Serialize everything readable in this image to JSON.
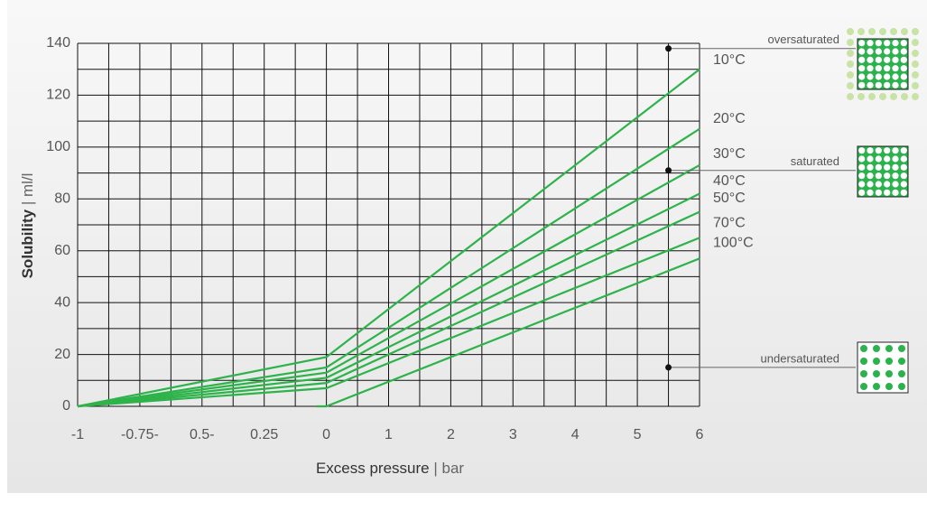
{
  "chart_data": {
    "type": "line",
    "xlabel_main": "Excess pressure",
    "xlabel_unit": "| bar",
    "ylabel_main": "Solubility",
    "ylabel_unit": "| ml/l",
    "xlim": [
      -1,
      6
    ],
    "ylim": [
      0,
      140
    ],
    "xticks": [
      -1,
      {
        "value": -0.75,
        "label": "-0.75-"
      },
      {
        "value": -0.5,
        "label": "0.5-"
      },
      {
        "value": -0.25,
        "label": "0.25"
      },
      0,
      1,
      2,
      3,
      4,
      5,
      6
    ],
    "xminorticks": [
      -0.875,
      -0.625,
      -0.375,
      -0.125,
      0.5,
      1.5,
      2.5,
      3.5,
      4.5,
      5.5
    ],
    "yticks": [
      0,
      20,
      40,
      60,
      80,
      100,
      120,
      140
    ],
    "yminorticks": [
      10,
      30,
      50,
      70,
      90,
      110,
      130
    ],
    "grid": true,
    "series": [
      {
        "name": "10°C",
        "color": "#2db34a",
        "x": [
          -1,
          0,
          6
        ],
        "values": [
          0,
          19,
          130
        ]
      },
      {
        "name": "20°C",
        "color": "#2db34a",
        "x": [
          -1,
          0,
          6
        ],
        "values": [
          0,
          15,
          107
        ]
      },
      {
        "name": "30°C",
        "color": "#2db34a",
        "x": [
          -1,
          0,
          6
        ],
        "values": [
          0,
          13,
          93
        ]
      },
      {
        "name": "40°C",
        "color": "#2db34a",
        "x": [
          -1,
          0,
          6
        ],
        "values": [
          0,
          11,
          82
        ]
      },
      {
        "name": "50°C",
        "color": "#2db34a",
        "x": [
          -1,
          0,
          6
        ],
        "values": [
          0,
          9,
          75
        ]
      },
      {
        "name": "70°C",
        "color": "#2db34a",
        "x": [
          -1,
          0,
          6
        ],
        "values": [
          0,
          7,
          65
        ]
      },
      {
        "name": "100°C",
        "color": "#2db34a",
        "x": [
          -0.04,
          0,
          6
        ],
        "values": [
          0,
          0,
          57
        ]
      }
    ],
    "annotations": [
      {
        "text": "oversaturated",
        "x": 5.5,
        "y": 138
      },
      {
        "text": "saturated",
        "x": 5.5,
        "y": 91
      },
      {
        "text": "undersaturated",
        "x": 5.5,
        "y": 15
      }
    ]
  }
}
